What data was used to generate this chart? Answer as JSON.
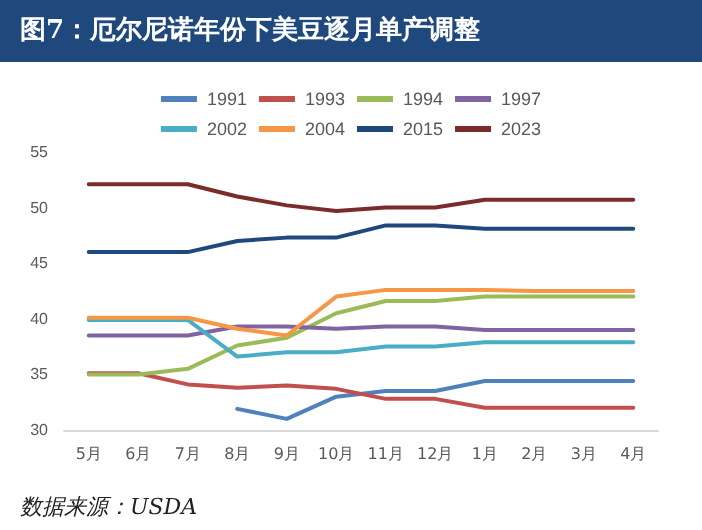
{
  "chart_data": {
    "type": "line",
    "title": "图7：厄尔尼诺年份下美豆逐月单产调整",
    "categories": [
      "5月",
      "6月",
      "7月",
      "8月",
      "9月",
      "10月",
      "11月",
      "12月",
      "1月",
      "2月",
      "3月",
      "4月"
    ],
    "series": [
      {
        "name": "1991",
        "color": "#4f81bd",
        "values": [
          null,
          null,
          null,
          31.9,
          31.0,
          33.0,
          33.5,
          33.5,
          34.4,
          34.4,
          34.4,
          34.4
        ]
      },
      {
        "name": "1993",
        "color": "#c0504d",
        "values": [
          35.1,
          35.1,
          34.1,
          33.8,
          34.0,
          33.7,
          32.8,
          32.8,
          32.0,
          32.0,
          32.0,
          32.0
        ]
      },
      {
        "name": "1994",
        "color": "#9bbb59",
        "values": [
          35.0,
          35.0,
          35.5,
          37.6,
          38.3,
          40.5,
          41.6,
          41.6,
          42.0,
          42.0,
          42.0,
          42.0
        ]
      },
      {
        "name": "1997",
        "color": "#8064a2",
        "values": [
          38.5,
          38.5,
          38.5,
          39.3,
          39.3,
          39.1,
          39.3,
          39.3,
          39.0,
          39.0,
          39.0,
          39.0
        ]
      },
      {
        "name": "2002",
        "color": "#4bacc6",
        "values": [
          39.9,
          39.9,
          39.9,
          36.6,
          37.0,
          37.0,
          37.5,
          37.5,
          37.9,
          37.9,
          37.9,
          37.9
        ]
      },
      {
        "name": "2004",
        "color": "#f79646",
        "values": [
          40.1,
          40.1,
          40.1,
          39.1,
          38.5,
          42.0,
          42.6,
          42.6,
          42.6,
          42.5,
          42.5,
          42.5
        ]
      },
      {
        "name": "2015",
        "color": "#1f497d",
        "values": [
          46.0,
          46.0,
          46.0,
          47.0,
          47.3,
          47.3,
          48.4,
          48.4,
          48.1,
          48.1,
          48.1,
          48.1
        ]
      },
      {
        "name": "2023",
        "color": "#7b2c2a",
        "values": [
          52.1,
          52.1,
          52.1,
          51.0,
          50.2,
          49.7,
          50.0,
          50.0,
          50.7,
          50.7,
          50.7,
          50.7
        ]
      }
    ],
    "ylim": [
      30,
      55
    ],
    "yticks": [
      30,
      35,
      40,
      45,
      50,
      55
    ],
    "grid": false,
    "legend": "top",
    "marker": "none",
    "line_style": "solid",
    "annotations": [
      "数据来源：USDA"
    ]
  }
}
